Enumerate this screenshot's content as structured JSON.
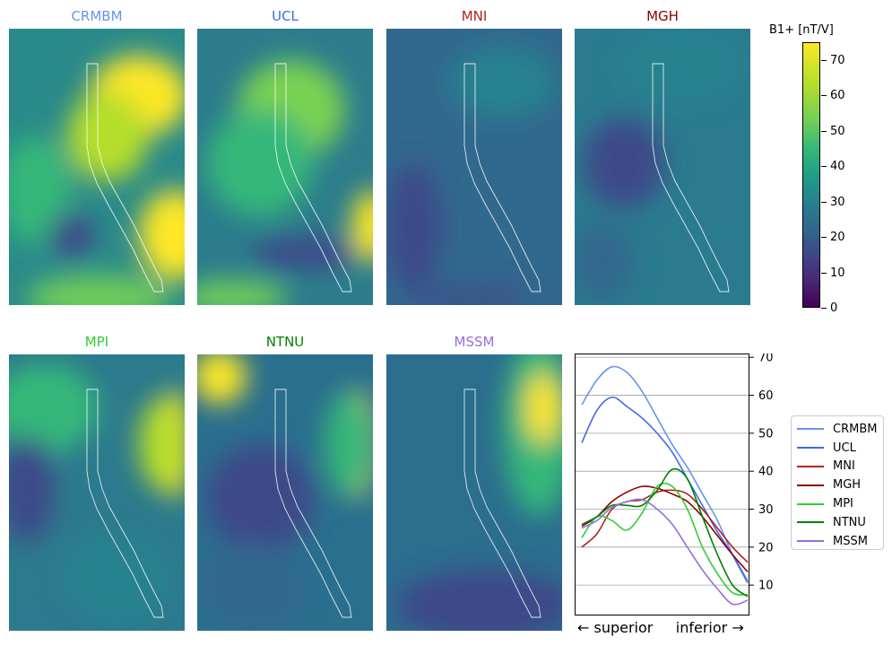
{
  "maps": [
    {
      "label": "CRMBM",
      "color": "#6495ed",
      "kind": "a"
    },
    {
      "label": "UCL",
      "color": "#4169e1",
      "kind": "b"
    },
    {
      "label": "MNI",
      "color": "#b22222",
      "kind": "c"
    },
    {
      "label": "MGH",
      "color": "#8b0000",
      "kind": "d"
    },
    {
      "label": "MPI",
      "color": "#32cd32",
      "kind": "e"
    },
    {
      "label": "NTNU",
      "color": "#008000",
      "kind": "f"
    },
    {
      "label": "MSSM",
      "color": "#9370db",
      "kind": "g"
    }
  ],
  "colorbar": {
    "title": "B1+ [nT/V]",
    "ticks": [
      "0",
      "10",
      "20",
      "30",
      "40",
      "50",
      "60",
      "70"
    ],
    "min": 0,
    "max": 75
  },
  "chart_data": {
    "type": "line",
    "xlabel": "← superior     inferior →",
    "ylim": [
      2,
      71
    ],
    "yticks": [
      10,
      20,
      30,
      40,
      50,
      60,
      70
    ],
    "grid": "horizontal",
    "legend_position": "right",
    "series": [
      {
        "name": "CRMBM",
        "color": "#6495ed",
        "values": [
          57.5,
          64,
          67.5,
          66,
          61,
          54,
          47,
          41,
          34,
          27,
          18,
          10.5
        ]
      },
      {
        "name": "UCL",
        "color": "#4169e1",
        "values": [
          47.5,
          56,
          59.5,
          57,
          54,
          50,
          45,
          38,
          31,
          24,
          18,
          11
        ]
      },
      {
        "name": "MNI",
        "color": "#b22222",
        "values": [
          20,
          23.5,
          30,
          32,
          32.5,
          34.5,
          35,
          34,
          30,
          25,
          20,
          16
        ]
      },
      {
        "name": "MGH",
        "color": "#8b0000",
        "values": [
          25.5,
          28,
          32,
          34.5,
          36,
          35.5,
          34,
          32,
          28,
          23,
          18,
          13.5
        ]
      },
      {
        "name": "MPI",
        "color": "#32cd32",
        "values": [
          22.5,
          28,
          27,
          24.5,
          29,
          36,
          36,
          30,
          20,
          13,
          8,
          7.5
        ]
      },
      {
        "name": "NTNU",
        "color": "#008000",
        "values": [
          26,
          28,
          31,
          31,
          31,
          35,
          40.5,
          38,
          28,
          18,
          10,
          7
        ]
      },
      {
        "name": "MSSM",
        "color": "#9370db",
        "values": [
          25,
          27,
          30.5,
          32,
          32.5,
          30,
          26,
          20,
          14,
          9,
          5,
          6
        ]
      }
    ]
  }
}
